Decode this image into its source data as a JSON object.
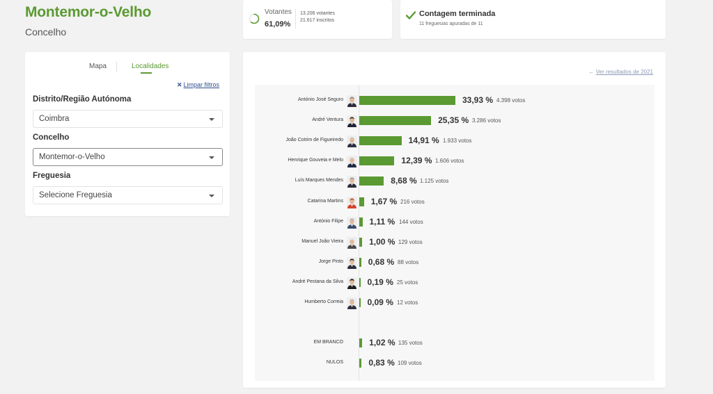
{
  "header": {
    "title": "Montemor-o-Velho",
    "subtitle": "Concelho"
  },
  "turnout": {
    "label": "Votantes",
    "percent": "61,09%",
    "ratio": 0.6109,
    "voters": "13.206 votantes",
    "registered": "21.617 inscritos",
    "color": "#5b9a32"
  },
  "count": {
    "title": "Contagem terminada",
    "subtitle": "11 freguesias apuradas de 11",
    "icon": "check-icon",
    "color": "#5b9a32"
  },
  "filters": {
    "tabs": {
      "map": "Mapa",
      "localities": "Localidades"
    },
    "clear": {
      "icon": "✕",
      "label": "Limpar filtros"
    },
    "district": {
      "label": "Distrito/Região Autónoma",
      "value": "Coimbra"
    },
    "municipality": {
      "label": "Concelho",
      "value": "Montemor-o-Velho"
    },
    "parish": {
      "label": "Freguesia",
      "value": "Selecione Freguesia"
    }
  },
  "results": {
    "prev_link": {
      "icon": "←",
      "label": "Ver resultados de 2021"
    },
    "bar_color": "#5b9a32",
    "candidates": [
      {
        "name": "António José Seguro",
        "pct": "33,93 %",
        "votes": "4.398 votos",
        "value": 33.93,
        "photo": true,
        "hair": "#8a8a8a",
        "suit": "#2b2b3a"
      },
      {
        "name": "André Ventura",
        "pct": "25,35 %",
        "votes": "3.286 votos",
        "value": 25.35,
        "photo": true,
        "hair": "#3a2a22",
        "suit": "#1f2333"
      },
      {
        "name": "João Cotrim de Figueiredo",
        "pct": "14,91 %",
        "votes": "1.933 votos",
        "value": 14.91,
        "photo": true,
        "hair": "#c9c9c9",
        "suit": "#2d3140"
      },
      {
        "name": "Henrique Gouveia e Melo",
        "pct": "12,39 %",
        "votes": "1.606 votos",
        "value": 12.39,
        "photo": true,
        "hair": "#d5d5d5",
        "suit": "#1d2a44"
      },
      {
        "name": "Luís Marques Mendes",
        "pct": "8,68 %",
        "votes": "1.125 votos",
        "value": 8.68,
        "photo": true,
        "hair": "#9a9a9a",
        "suit": "#2a2e3a"
      },
      {
        "name": "Catarina Martins",
        "pct": "1,67 %",
        "votes": "216 votos",
        "value": 1.67,
        "photo": true,
        "hair": "#b8562c",
        "suit": "#d3452f"
      },
      {
        "name": "António Filipe",
        "pct": "1,11 %",
        "votes": "144 votos",
        "value": 1.11,
        "photo": true,
        "hair": "#b5b5b5",
        "suit": "#3a4a6a"
      },
      {
        "name": "Manuel João Vieira",
        "pct": "1,00 %",
        "votes": "129 votos",
        "value": 1.0,
        "photo": true,
        "hair": "#e0e0e0",
        "suit": "#4a4a4a"
      },
      {
        "name": "Jorge Pinto",
        "pct": "0,68 %",
        "votes": "88 votos",
        "value": 0.68,
        "photo": true,
        "hair": "#2a2a2a",
        "suit": "#2b2f3a"
      },
      {
        "name": "André Pestana da Silva",
        "pct": "0,19 %",
        "votes": "25 votos",
        "value": 0.19,
        "photo": true,
        "hair": "#1e1e1e",
        "suit": "#202020"
      },
      {
        "name": "Humberto Correia",
        "pct": "0,09 %",
        "votes": "12 votos",
        "value": 0.09,
        "photo": true,
        "hair": "#bdbdbd",
        "suit": "#2e3240"
      },
      {
        "name": "EM BRANCO",
        "pct": "1,02 %",
        "votes": "135 votos",
        "value": 1.02,
        "photo": false,
        "gap": true
      },
      {
        "name": "NULOS",
        "pct": "0,83 %",
        "votes": "109 votos",
        "value": 0.83,
        "photo": false
      }
    ]
  }
}
